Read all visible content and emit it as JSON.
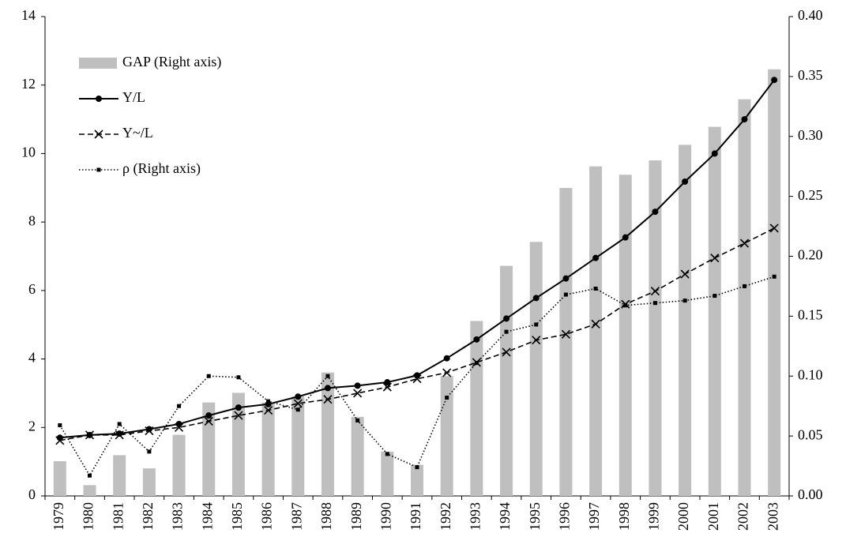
{
  "chart_data": {
    "type": "combo",
    "categories": [
      "1979",
      "1980",
      "1981",
      "1982",
      "1983",
      "1984",
      "1985",
      "1986",
      "1987",
      "1988",
      "1989",
      "1990",
      "1991",
      "1992",
      "1993",
      "1994",
      "1995",
      "1996",
      "1997",
      "1998",
      "1999",
      "2000",
      "2001",
      "2002",
      "2003"
    ],
    "ylim": [
      0,
      14
    ],
    "yticks": [
      0,
      2,
      4,
      6,
      8,
      10,
      12,
      14
    ],
    "y2lim": [
      0,
      0.4
    ],
    "y2ticks": [
      {
        "value": 0,
        "label": "0.00"
      },
      0.05,
      {
        "value": 0.1,
        "label": "0.10"
      },
      0.15,
      {
        "value": 0.2,
        "label": "0.20"
      },
      0.25,
      {
        "value": 0.3,
        "label": "0.30"
      },
      0.35,
      {
        "value": 0.4,
        "label": "0.40"
      }
    ],
    "grid": false,
    "series": [
      {
        "name": "GAP (Right axis)",
        "type": "bar",
        "axis": "y2",
        "color": "#bfbfbf",
        "values": [
          0.029,
          0.009,
          0.034,
          0.023,
          0.051,
          0.078,
          0.086,
          0.078,
          0.083,
          0.103,
          0.066,
          0.037,
          0.026,
          0.1,
          0.146,
          0.192,
          0.212,
          0.257,
          0.275,
          0.268,
          0.28,
          0.293,
          0.308,
          0.331,
          0.356
        ]
      },
      {
        "name": "Y/L",
        "type": "line",
        "axis": "y",
        "color": "#000000",
        "dash": "solid",
        "marker": "circle",
        "values": [
          1.7,
          1.78,
          1.82,
          1.95,
          2.1,
          2.35,
          2.58,
          2.68,
          2.9,
          3.15,
          3.22,
          3.32,
          3.52,
          4.02,
          4.57,
          5.18,
          5.78,
          6.35,
          6.95,
          7.55,
          8.3,
          9.18,
          10.0,
          11.0,
          12.15
        ]
      },
      {
        "name": "Y~/L",
        "type": "line",
        "axis": "y",
        "color": "#000000",
        "dash": "dashed",
        "marker": "x",
        "values": [
          1.62,
          1.78,
          1.78,
          1.9,
          2.0,
          2.18,
          2.35,
          2.5,
          2.7,
          2.82,
          3.0,
          3.18,
          3.42,
          3.6,
          3.9,
          4.2,
          4.55,
          4.72,
          5.02,
          5.6,
          5.98,
          6.48,
          6.95,
          7.38,
          7.82
        ]
      },
      {
        "name": "ρ (Right axis)",
        "type": "line",
        "axis": "y2",
        "color": "#000000",
        "dash": "dotted",
        "marker": "square",
        "values": [
          0.059,
          0.017,
          0.06,
          0.037,
          0.075,
          0.1,
          0.099,
          0.079,
          0.072,
          0.1,
          0.063,
          0.035,
          0.024,
          0.082,
          0.111,
          0.137,
          0.143,
          0.168,
          0.173,
          0.159,
          0.161,
          0.163,
          0.167,
          0.175,
          0.183
        ]
      }
    ]
  }
}
